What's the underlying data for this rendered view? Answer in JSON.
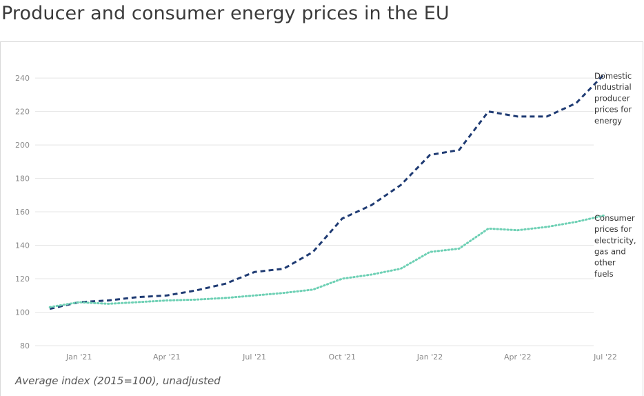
{
  "chart_data": {
    "type": "line",
    "title": "Producer and consumer energy prices in the EU",
    "footnote": "Average index (2015=100), unadjusted",
    "ylim": [
      80,
      245
    ],
    "yticks": [
      80,
      100,
      120,
      140,
      160,
      180,
      200,
      220,
      240
    ],
    "xlim": [
      -0.5,
      18.6
    ],
    "xticks": [
      {
        "value": 1,
        "label": "Jan '21"
      },
      {
        "value": 4,
        "label": "Apr '21"
      },
      {
        "value": 7,
        "label": "Jul '21"
      },
      {
        "value": 10,
        "label": "Oct '21"
      },
      {
        "value": 13,
        "label": "Jan '22"
      },
      {
        "value": 16,
        "label": "Apr '22"
      },
      {
        "value": 19,
        "label": "Jul '22"
      }
    ],
    "grid": true,
    "series": [
      {
        "name": "Domestic industrial producer prices for energy",
        "legend_lines": [
          "Domestic",
          "industrial",
          "producer",
          "prices for",
          "energy"
        ],
        "color": "#1f3b73",
        "style": "dashed",
        "x": [
          0,
          1,
          2,
          3,
          4,
          5,
          6,
          7,
          8,
          9,
          10,
          11,
          12,
          13,
          14,
          15,
          16,
          17,
          18,
          19
        ],
        "values": [
          102,
          106,
          107,
          109,
          110,
          113,
          117,
          124,
          126,
          136,
          156,
          164,
          176,
          194,
          197,
          220,
          217,
          217,
          225,
          243
        ]
      },
      {
        "name": "Consumer prices for electricity, gas and other fuels",
        "legend_lines": [
          "Consumer",
          "prices for",
          "electricity,",
          "gas and",
          "other",
          "fuels"
        ],
        "color": "#6dd0b4",
        "style": "dotted",
        "x": [
          0,
          1,
          2,
          3,
          4,
          5,
          6,
          7,
          8,
          9,
          10,
          11,
          12,
          13,
          14,
          15,
          16,
          17,
          18,
          19
        ],
        "values": [
          103,
          106,
          105,
          106,
          107,
          107.5,
          108.5,
          110,
          111.5,
          113.5,
          120,
          122.5,
          126,
          136,
          138,
          150,
          149,
          151,
          154,
          158
        ]
      }
    ]
  }
}
